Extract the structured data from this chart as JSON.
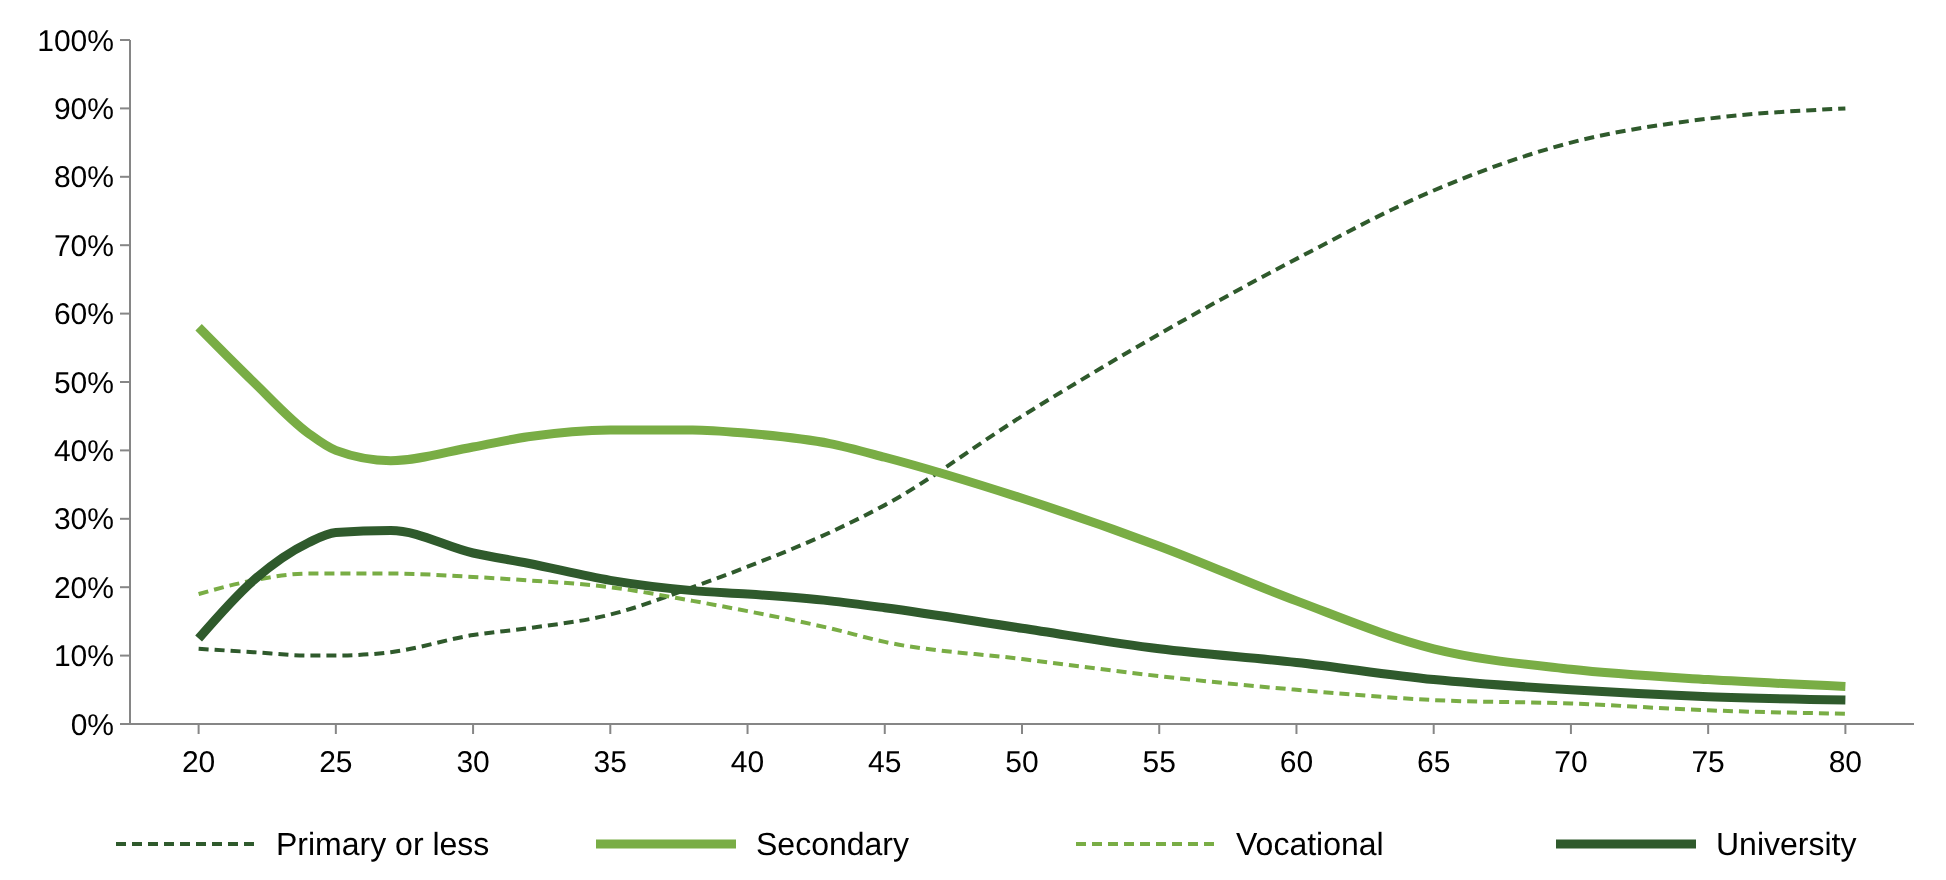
{
  "chart_data": {
    "type": "line",
    "x": [
      20,
      22,
      24,
      25,
      27,
      30,
      32,
      35,
      38,
      40,
      43,
      45,
      50,
      55,
      60,
      65,
      70,
      75,
      80
    ],
    "xlim": [
      17.5,
      82.5
    ],
    "xticks": [
      20,
      25,
      30,
      35,
      40,
      45,
      50,
      55,
      60,
      65,
      70,
      75,
      80
    ],
    "ylim": [
      0,
      1
    ],
    "yticks": [
      {
        "value": 0,
        "label": "0%"
      },
      {
        "value": 0.1,
        "label": "10%"
      },
      {
        "value": 0.2,
        "label": "20%"
      },
      {
        "value": 0.3,
        "label": "30%"
      },
      {
        "value": 0.4,
        "label": "40%"
      },
      {
        "value": 0.5,
        "label": "50%"
      },
      {
        "value": 0.6,
        "label": "60%"
      },
      {
        "value": 0.7,
        "label": "70%"
      },
      {
        "value": 0.8,
        "label": "80%"
      },
      {
        "value": 0.9,
        "label": "90%"
      },
      {
        "value": 1,
        "label": "100%"
      }
    ],
    "grid": false,
    "legend": "bottom",
    "marker": "none",
    "series": [
      {
        "name": "Primary or less",
        "color": "#2f5a2c",
        "line_style": "dashed",
        "values": [
          0.11,
          0.105,
          0.1,
          0.1,
          0.105,
          0.13,
          0.14,
          0.16,
          0.2,
          0.23,
          0.28,
          0.32,
          0.45,
          0.57,
          0.68,
          0.78,
          0.85,
          0.885,
          0.9
        ]
      },
      {
        "name": "Secondary",
        "color": "#79ad45",
        "line_style": "solid",
        "values": [
          0.58,
          0.5,
          0.425,
          0.4,
          0.385,
          0.405,
          0.42,
          0.43,
          0.43,
          0.425,
          0.41,
          0.39,
          0.33,
          0.26,
          0.18,
          0.11,
          0.08,
          0.065,
          0.055
        ]
      },
      {
        "name": "Vocational",
        "color": "#79ad45",
        "line_style": "dashed",
        "values": [
          0.19,
          0.21,
          0.22,
          0.22,
          0.22,
          0.215,
          0.21,
          0.2,
          0.18,
          0.165,
          0.14,
          0.12,
          0.095,
          0.07,
          0.05,
          0.035,
          0.03,
          0.02,
          0.015
        ]
      },
      {
        "name": "University",
        "color": "#2f5a2c",
        "line_style": "solid",
        "values": [
          0.125,
          0.21,
          0.265,
          0.28,
          0.283,
          0.25,
          0.235,
          0.21,
          0.195,
          0.19,
          0.18,
          0.17,
          0.14,
          0.11,
          0.09,
          0.065,
          0.05,
          0.04,
          0.035
        ]
      }
    ]
  }
}
